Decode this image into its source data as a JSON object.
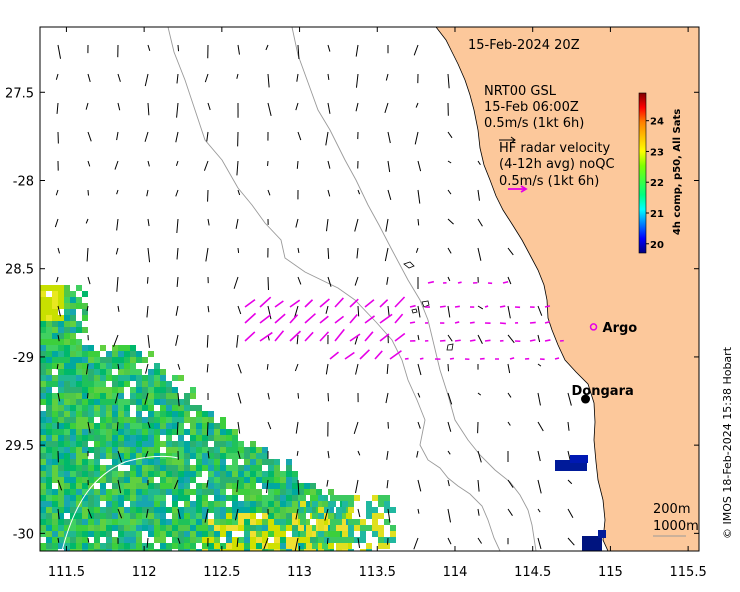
{
  "map": {
    "timestamp": "15-Feb-2024 20Z",
    "model_block": [
      "NRT00 GSL",
      "15-Feb 06:00Z",
      "0.5m/s (1kt 6h)"
    ],
    "radar_block": [
      "HF radar velocity",
      "(4-12h avg) noQC",
      "0.5m/s (1kt 6h)"
    ],
    "places": [
      {
        "name": "Argo",
        "lon": 114.93,
        "lat": -28.83,
        "marker": "ring",
        "color": "#e600e6"
      },
      {
        "name": "Dongara",
        "lon": 114.93,
        "lat": -29.25,
        "marker": "dot",
        "color": "#000000"
      }
    ],
    "depth_labels": [
      "200m",
      "1000m"
    ],
    "credit": "© IMOS 18-Feb-2024 15:38 Hobart",
    "lon_ticks": [
      "111.5",
      "112",
      "112.5",
      "113",
      "113.5",
      "114",
      "114.5",
      "115",
      "115.5"
    ],
    "lat_ticks": [
      "27.5",
      "-28",
      "28.5",
      "-29",
      "29.5",
      "-30"
    ],
    "lon_values": [
      111.5,
      112,
      112.5,
      113,
      113.5,
      114,
      114.5,
      115,
      115.5
    ],
    "lat_values": [
      -27.5,
      -28,
      -28.5,
      -29,
      -29.5,
      -30
    ],
    "extent": {
      "lon": [
        111.33,
        115.57
      ],
      "lat": [
        -27.13,
        -30.1
      ]
    },
    "colors": {
      "land": "#fcc89b",
      "vector_model": "#000000",
      "vector_radar": "#e600e6",
      "isobath": "#999999"
    }
  },
  "colorbar": {
    "title": "4h comp, p50, All Sats",
    "ticks": [
      "20",
      "21",
      "22",
      "23",
      "24"
    ],
    "tick_values": [
      20,
      21,
      22,
      23,
      24
    ],
    "range": [
      19.7,
      24.9
    ],
    "colors": [
      "#00007f",
      "#0000ff",
      "#0080ff",
      "#00ffff",
      "#00ff80",
      "#40ff40",
      "#80ff00",
      "#ffff00",
      "#ffc000",
      "#ff8000",
      "#ff0000",
      "#7f0000"
    ]
  }
}
